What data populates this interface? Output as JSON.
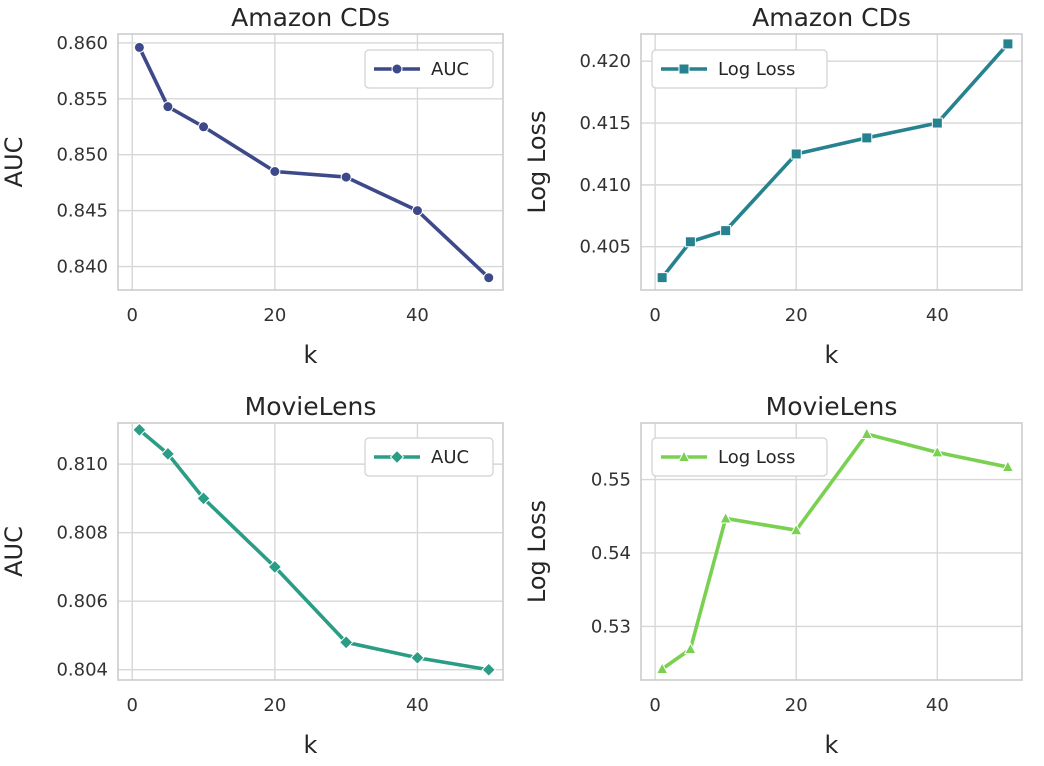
{
  "chart_data": [
    {
      "type": "line",
      "title": "Amazon CDs",
      "xlabel": "k",
      "ylabel": "AUC",
      "x": [
        1,
        5,
        10,
        20,
        30,
        40,
        50
      ],
      "xlim": [
        -2,
        52
      ],
      "xticks": [
        0,
        20,
        40
      ],
      "ylim": [
        0.8379,
        0.8608
      ],
      "yticks": [
        0.84,
        0.845,
        0.85,
        0.855,
        0.86
      ],
      "ytick_labels": [
        "0.840",
        "0.845",
        "0.850",
        "0.855",
        "0.860"
      ],
      "grid": true,
      "legend_position": "top-right",
      "series": [
        {
          "name": "AUC",
          "marker": "circle",
          "color": "#3e4989",
          "values": [
            0.8596,
            0.8543,
            0.8525,
            0.8485,
            0.848,
            0.845,
            0.839
          ]
        }
      ]
    },
    {
      "type": "line",
      "title": "Amazon CDs",
      "xlabel": "k",
      "ylabel": "Log Loss",
      "x": [
        1,
        5,
        10,
        20,
        30,
        40,
        50
      ],
      "xlim": [
        -2,
        52
      ],
      "xticks": [
        0,
        20,
        40
      ],
      "ylim": [
        0.4015,
        0.4222
      ],
      "yticks": [
        0.405,
        0.41,
        0.415,
        0.42
      ],
      "ytick_labels": [
        "0.405",
        "0.410",
        "0.415",
        "0.420"
      ],
      "grid": true,
      "legend_position": "top-left",
      "series": [
        {
          "name": "Log Loss",
          "marker": "square",
          "color": "#26828e",
          "values": [
            0.4025,
            0.4054,
            0.4063,
            0.4125,
            0.4138,
            0.415,
            0.4214
          ]
        }
      ]
    },
    {
      "type": "line",
      "title": "MovieLens",
      "xlabel": "k",
      "ylabel": "AUC",
      "x": [
        1,
        5,
        10,
        20,
        30,
        40,
        50
      ],
      "xlim": [
        -2,
        52
      ],
      "xticks": [
        0,
        20,
        40
      ],
      "ylim": [
        0.8037,
        0.8112
      ],
      "yticks": [
        0.804,
        0.806,
        0.808,
        0.81
      ],
      "ytick_labels": [
        "0.804",
        "0.806",
        "0.808",
        "0.810"
      ],
      "grid": true,
      "legend_position": "top-right",
      "series": [
        {
          "name": "AUC",
          "marker": "diamond",
          "color": "#2a9d84",
          "values": [
            0.811,
            0.8103,
            0.809,
            0.807,
            0.8048,
            0.80435,
            0.804
          ]
        }
      ]
    },
    {
      "type": "line",
      "title": "MovieLens",
      "xlabel": "k",
      "ylabel": "Log Loss",
      "x": [
        1,
        5,
        10,
        20,
        30,
        40,
        50
      ],
      "xlim": [
        -2,
        52
      ],
      "xticks": [
        0,
        20,
        40
      ],
      "ylim": [
        0.5227,
        0.5577
      ],
      "yticks": [
        0.53,
        0.54,
        0.55
      ],
      "ytick_labels": [
        "0.53",
        "0.54",
        "0.55"
      ],
      "grid": true,
      "legend_position": "top-left",
      "series": [
        {
          "name": "Log Loss",
          "marker": "triangle",
          "color": "#7ad151",
          "values": [
            0.5242,
            0.5269,
            0.5447,
            0.5431,
            0.5562,
            0.5537,
            0.5517
          ]
        }
      ]
    }
  ]
}
